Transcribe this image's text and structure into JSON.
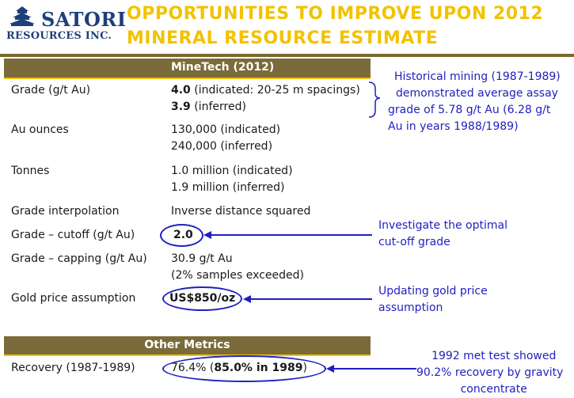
{
  "header": {
    "logo_main": "SATORI",
    "logo_sub": "RESOURCES INC.",
    "title_line1": "OPPORTUNITIES TO IMPROVE UPON 2012",
    "title_line2": "MINERAL RESOURCE ESTIMATE"
  },
  "table": {
    "column_header": "MineTech (2012)",
    "rows": [
      {
        "label": "Grade (g/t Au)",
        "line1_bold": "4.0",
        "line1_rest": " (indicated: 20-25 m spacings)",
        "line2_bold": "3.9",
        "line2_rest": " (inferred)"
      },
      {
        "label": "Au ounces",
        "line1": "130,000 (indicated)",
        "line2": "240,000 (inferred)"
      },
      {
        "label": "Tonnes",
        "line1": "1.0 million (indicated)",
        "line2": "1.9 million (inferred)"
      },
      {
        "label": "Grade interpolation",
        "line1": "Inverse distance squared"
      },
      {
        "label": "Grade – cutoff (g/t Au)",
        "line1": "2.0"
      },
      {
        "label": "Grade – capping (g/t Au)",
        "line1": "30.9 g/t Au",
        "line2": "(2% samples exceeded)"
      },
      {
        "label": "Gold price assumption",
        "line1": "US$850/oz"
      }
    ]
  },
  "other_metrics": {
    "header": "Other Metrics",
    "label": "Recovery (1987-1989)",
    "value_prefix": "76.4% (",
    "value_bold": "85.0% in 1989",
    "value_suffix": ")"
  },
  "annotations": {
    "historical": [
      "Historical mining (1987-1989)",
      "demonstrated average assay",
      "grade of 5.78 g/t Au (6.28 g/t",
      "Au in years 1988/1989)"
    ],
    "cutoff": [
      "Investigate the optimal",
      "cut-off grade"
    ],
    "gold_price": [
      "Updating gold price",
      "assumption"
    ],
    "met_test": [
      "1992 met test showed",
      "90.2% recovery by gravity",
      "concentrate"
    ]
  },
  "colors": {
    "title_yellow": "#f2c200",
    "table_header_brown": "#7b6b3a",
    "annotation_blue": "#1f1fbf",
    "logo_navy": "#1f3f7a"
  }
}
